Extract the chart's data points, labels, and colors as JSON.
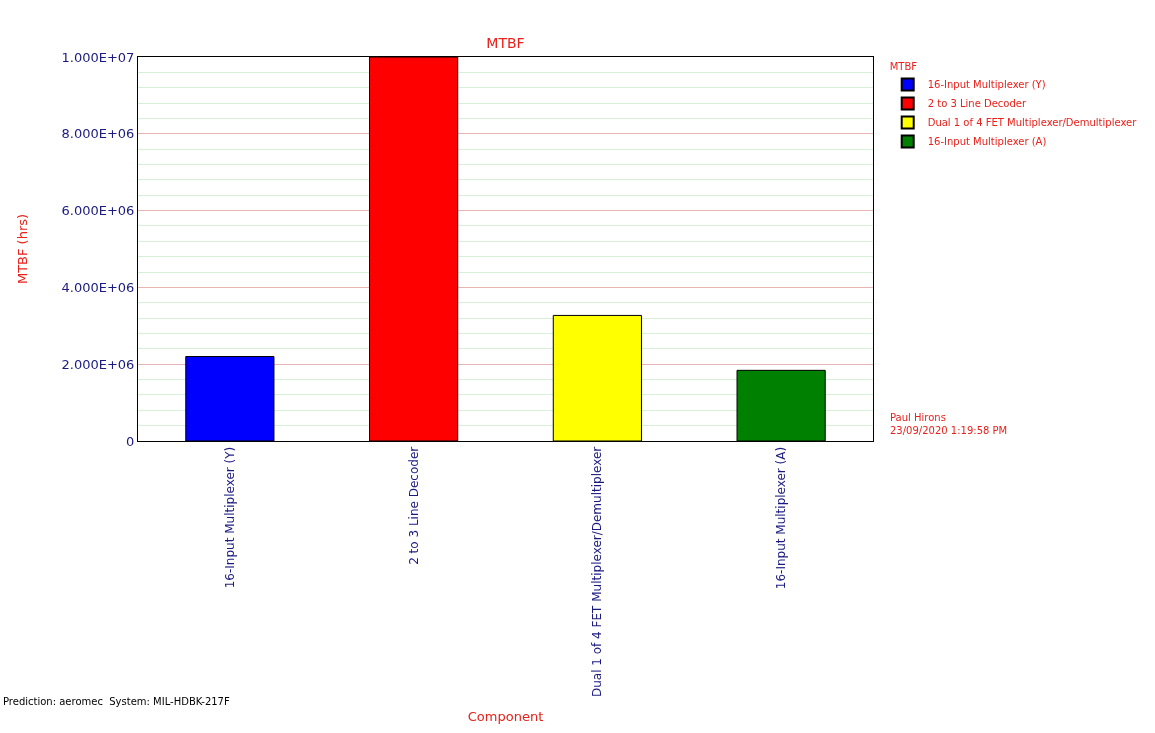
{
  "chart_data": {
    "type": "bar",
    "title": "MTBF",
    "xlabel": "Component",
    "ylabel": "MTBF (hrs)",
    "legend_title": "MTBF",
    "categories": [
      "16-Input Multiplexer (Y)",
      "2 to 3 Line Decoder",
      "Dual 1 of 4 FET Multiplexer/Demultiplexer",
      "16-Input Multiplexer (A)"
    ],
    "series": [
      {
        "name": "16-Input Multiplexer (Y)",
        "color": "#0000ff",
        "values": [
          2200000,
          null,
          null,
          null
        ]
      },
      {
        "name": "2 to 3 Line Decoder",
        "color": "#ff0000",
        "values": [
          null,
          10000000,
          null,
          null
        ]
      },
      {
        "name": "Dual 1 of 4 FET Multiplexer/Demultiplexer",
        "color": "#ffff00",
        "values": [
          null,
          null,
          3270000,
          null
        ]
      },
      {
        "name": "16-Input Multiplexer (A)",
        "color": "#008000",
        "values": [
          null,
          null,
          null,
          1840000
        ]
      }
    ],
    "ylim": [
      0,
      10000000
    ],
    "yticks": [
      0,
      {
        "value": 2000000,
        "label": "2.000E+06"
      },
      {
        "value": 4000000,
        "label": "4.000E+06"
      },
      {
        "value": 6000000,
        "label": "6.000E+06"
      },
      {
        "value": 8000000,
        "label": "8.000E+06"
      },
      {
        "value": 10000000,
        "label": "1.000E+07"
      }
    ],
    "grid": "y",
    "legend": "top right",
    "annotations": [
      "Paul Hirons",
      "23/09/2020 1:19:58 PM",
      "Prediction: aeromec  System: MIL-HDBK-217F"
    ]
  }
}
